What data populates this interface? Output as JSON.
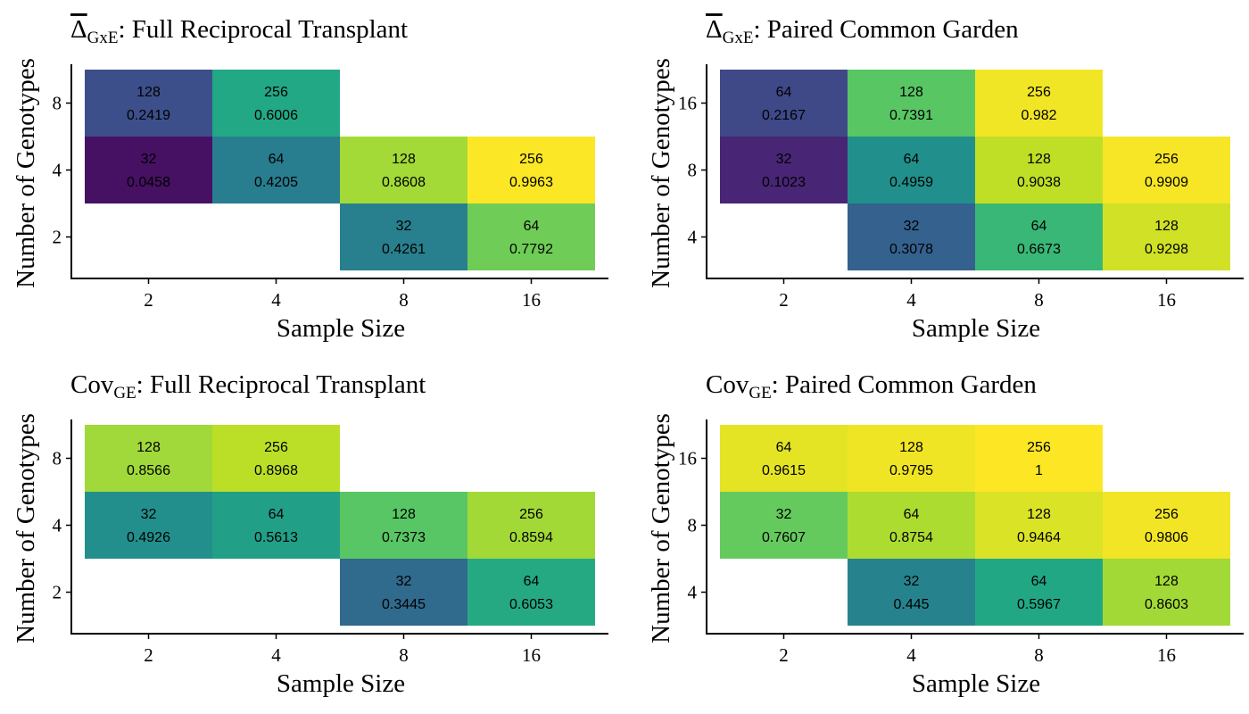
{
  "chart_data": [
    {
      "type": "heatmap",
      "title_main": "Δ",
      "title_sub": "GxE",
      "title_rest": ": Full Reciprocal Transplant",
      "xlabel": "Sample Size",
      "ylabel": "Number of Genotypes",
      "x_categories": [
        "2",
        "4",
        "8",
        "16"
      ],
      "y_categories": [
        "2",
        "4",
        "8"
      ],
      "color_scale": "viridis",
      "value_range": [
        0,
        1
      ],
      "cells": [
        {
          "x": "2",
          "y": "8",
          "total": 128,
          "value": 0.2419
        },
        {
          "x": "4",
          "y": "8",
          "total": 256,
          "value": 0.6006
        },
        {
          "x": "2",
          "y": "4",
          "total": 32,
          "value": 0.0458
        },
        {
          "x": "4",
          "y": "4",
          "total": 64,
          "value": 0.4205
        },
        {
          "x": "8",
          "y": "4",
          "total": 128,
          "value": 0.8608
        },
        {
          "x": "16",
          "y": "4",
          "total": 256,
          "value": 0.9963
        },
        {
          "x": "8",
          "y": "2",
          "total": 32,
          "value": 0.4261
        },
        {
          "x": "16",
          "y": "2",
          "total": 64,
          "value": 0.7792
        }
      ]
    },
    {
      "type": "heatmap",
      "title_main": "Δ",
      "title_sub": "GxE",
      "title_rest": ": Paired Common Garden",
      "xlabel": "Sample Size",
      "ylabel": "Number of Genotypes",
      "x_categories": [
        "2",
        "4",
        "8",
        "16"
      ],
      "y_categories": [
        "4",
        "8",
        "16"
      ],
      "color_scale": "viridis",
      "value_range": [
        0,
        1
      ],
      "cells": [
        {
          "x": "2",
          "y": "16",
          "total": 64,
          "value": 0.2167
        },
        {
          "x": "4",
          "y": "16",
          "total": 128,
          "value": 0.7391
        },
        {
          "x": "8",
          "y": "16",
          "total": 256,
          "value": 0.982
        },
        {
          "x": "2",
          "y": "8",
          "total": 32,
          "value": 0.1023
        },
        {
          "x": "4",
          "y": "8",
          "total": 64,
          "value": 0.4959
        },
        {
          "x": "8",
          "y": "8",
          "total": 128,
          "value": 0.9038
        },
        {
          "x": "16",
          "y": "8",
          "total": 256,
          "value": 0.9909
        },
        {
          "x": "4",
          "y": "4",
          "total": 32,
          "value": 0.3078
        },
        {
          "x": "8",
          "y": "4",
          "total": 64,
          "value": 0.6673
        },
        {
          "x": "16",
          "y": "4",
          "total": 128,
          "value": 0.9298
        }
      ]
    },
    {
      "type": "heatmap",
      "title_main": "Cov",
      "title_sub": "GE",
      "title_rest": ": Full Reciprocal Transplant",
      "xlabel": "Sample Size",
      "ylabel": "Number of Genotypes",
      "x_categories": [
        "2",
        "4",
        "8",
        "16"
      ],
      "y_categories": [
        "2",
        "4",
        "8"
      ],
      "color_scale": "viridis",
      "value_range": [
        0,
        1
      ],
      "cells": [
        {
          "x": "2",
          "y": "8",
          "total": 128,
          "value": 0.8566
        },
        {
          "x": "4",
          "y": "8",
          "total": 256,
          "value": 0.8968
        },
        {
          "x": "2",
          "y": "4",
          "total": 32,
          "value": 0.4926
        },
        {
          "x": "4",
          "y": "4",
          "total": 64,
          "value": 0.5613
        },
        {
          "x": "8",
          "y": "4",
          "total": 128,
          "value": 0.7373
        },
        {
          "x": "16",
          "y": "4",
          "total": 256,
          "value": 0.8594
        },
        {
          "x": "8",
          "y": "2",
          "total": 32,
          "value": 0.3445
        },
        {
          "x": "16",
          "y": "2",
          "total": 64,
          "value": 0.6053
        }
      ]
    },
    {
      "type": "heatmap",
      "title_main": "Cov",
      "title_sub": "GE",
      "title_rest": ": Paired Common Garden",
      "xlabel": "Sample Size",
      "ylabel": "Number of Genotypes",
      "x_categories": [
        "2",
        "4",
        "8",
        "16"
      ],
      "y_categories": [
        "4",
        "8",
        "16"
      ],
      "color_scale": "viridis",
      "value_range": [
        0,
        1
      ],
      "cells": [
        {
          "x": "2",
          "y": "16",
          "total": 64,
          "value": 0.9615
        },
        {
          "x": "4",
          "y": "16",
          "total": 128,
          "value": 0.9795
        },
        {
          "x": "8",
          "y": "16",
          "total": 256,
          "value": 1
        },
        {
          "x": "2",
          "y": "8",
          "total": 32,
          "value": 0.7607
        },
        {
          "x": "4",
          "y": "8",
          "total": 64,
          "value": 0.8754
        },
        {
          "x": "8",
          "y": "8",
          "total": 128,
          "value": 0.9464
        },
        {
          "x": "16",
          "y": "8",
          "total": 256,
          "value": 0.9806
        },
        {
          "x": "4",
          "y": "4",
          "total": 32,
          "value": 0.445
        },
        {
          "x": "8",
          "y": "4",
          "total": 64,
          "value": 0.5967
        },
        {
          "x": "16",
          "y": "4",
          "total": 128,
          "value": 0.8603
        }
      ]
    }
  ]
}
